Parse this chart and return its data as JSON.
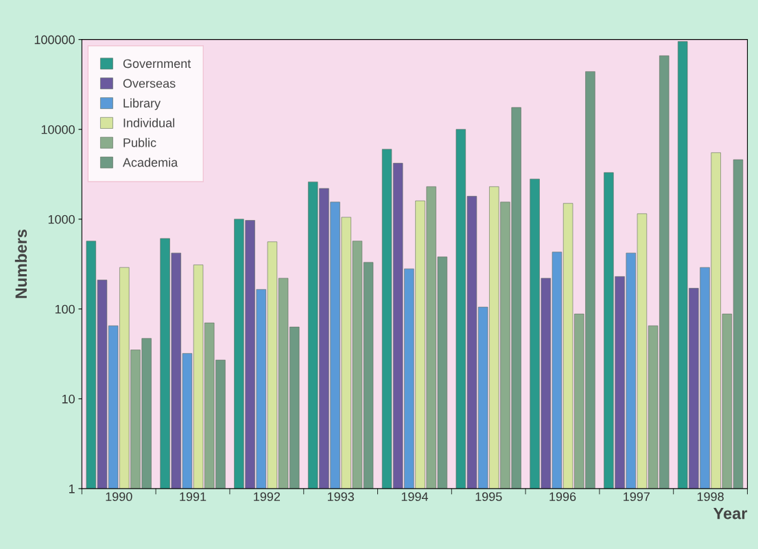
{
  "chart_data": {
    "type": "bar",
    "xlabel": "Year",
    "ylabel": "Numbers",
    "categories": [
      "1990",
      "1991",
      "1992",
      "1993",
      "1994",
      "1995",
      "1996",
      "1997",
      "1998"
    ],
    "series": [
      {
        "name": "Government",
        "color": "#2a9a8c",
        "values": [
          570,
          610,
          1000,
          2600,
          6000,
          10000,
          2800,
          3300,
          95000
        ]
      },
      {
        "name": "Overseas",
        "color": "#6a5a9e",
        "values": [
          210,
          420,
          970,
          2200,
          4200,
          1800,
          220,
          230,
          170
        ]
      },
      {
        "name": "Library",
        "color": "#5a9ad8",
        "values": [
          65,
          32,
          165,
          1550,
          280,
          105,
          430,
          420,
          290
        ]
      },
      {
        "name": "Individual",
        "color": "#d6e49e",
        "values": [
          290,
          310,
          560,
          1050,
          1600,
          2300,
          1500,
          1150,
          5500
        ]
      },
      {
        "name": "Public",
        "color": "#8aac8c",
        "values": [
          35,
          70,
          220,
          570,
          2300,
          1550,
          88,
          65,
          88
        ]
      },
      {
        "name": "Academia",
        "color": "#6e9a84",
        "values": [
          47,
          27,
          63,
          330,
          380,
          17500,
          44000,
          66000,
          4600
        ]
      }
    ],
    "log": true,
    "ylim": [
      1,
      100000
    ],
    "yticks": [
      1,
      10,
      100,
      1000,
      10000,
      100000
    ],
    "grid": false,
    "legend": "top left"
  }
}
